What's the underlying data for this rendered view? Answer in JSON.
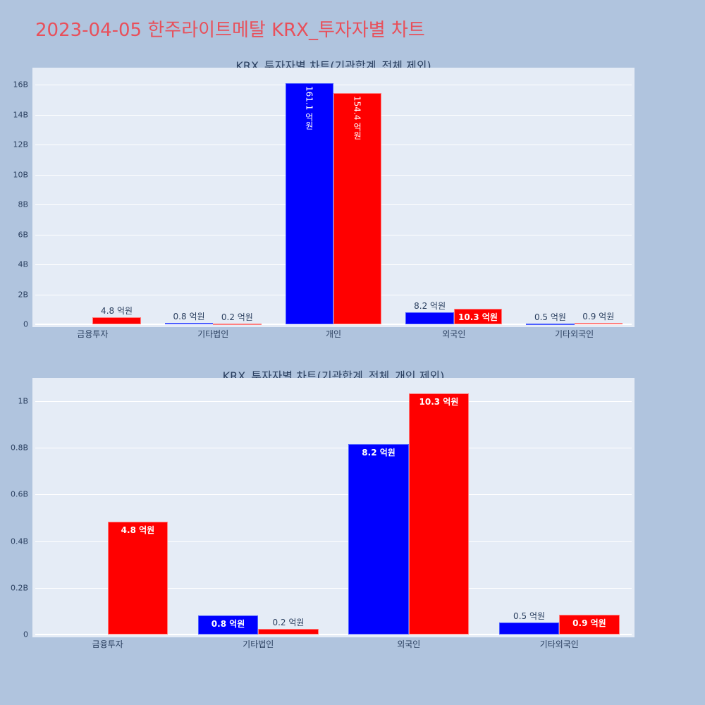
{
  "title": "2023-04-05 한주라이트메탈 KRX_투자자별 차트",
  "unit_suffix": "억원",
  "colors": {
    "buy": "#0000ff",
    "sell": "#ff0000",
    "title": "#e8505b",
    "background": "#b0c4de",
    "plot_bg": "#e5ecf6"
  },
  "chart_data": [
    {
      "type": "bar",
      "title": "KRX_투자자별 차트(기관합계_전체 제외)",
      "categories": [
        "금융투자",
        "기타법인",
        "개인",
        "외국인",
        "기타외국인"
      ],
      "series": [
        {
          "name": "blue",
          "color": "#0000ff",
          "values": [
            0,
            0.08,
            16.11,
            0.82,
            0.05
          ],
          "labels": [
            "",
            "0.8 억원",
            "161.1 억원",
            "8.2 억원",
            "0.5 억원"
          ]
        },
        {
          "name": "red",
          "color": "#ff0000",
          "values": [
            0.48,
            0.02,
            15.44,
            1.03,
            0.09
          ],
          "labels": [
            "4.8 억원",
            "0.2 억원",
            "154.4 억원",
            "10.3 억원",
            "0.9 억원"
          ]
        }
      ],
      "yticks": [
        "0",
        "2B",
        "4B",
        "6B",
        "8B",
        "10B",
        "12B",
        "14B",
        "16B"
      ],
      "ylim": [
        0,
        17
      ],
      "yunit": "B",
      "grid": true,
      "legend": "none"
    },
    {
      "type": "bar",
      "title": "KRX_투자자별 차트(기관합계_전체_개인 제외)",
      "categories": [
        "금융투자",
        "기타법인",
        "외국인",
        "기타외국인"
      ],
      "series": [
        {
          "name": "blue",
          "color": "#0000ff",
          "values": [
            0,
            0.082,
            0.816,
            0.052
          ],
          "labels": [
            "",
            "0.8 억원",
            "8.2 억원",
            "0.5 억원"
          ]
        },
        {
          "name": "red",
          "color": "#ff0000",
          "values": [
            0.483,
            0.024,
            1.033,
            0.086
          ],
          "labels": [
            "4.8 억원",
            "0.2 억원",
            "10.3 억원",
            "0.9 억원"
          ]
        }
      ],
      "yticks": [
        "0",
        "0.2B",
        "0.4B",
        "0.6B",
        "0.8B",
        "1B"
      ],
      "ylim": [
        0,
        1.1
      ],
      "yunit": "B",
      "grid": true,
      "legend": "none"
    }
  ]
}
